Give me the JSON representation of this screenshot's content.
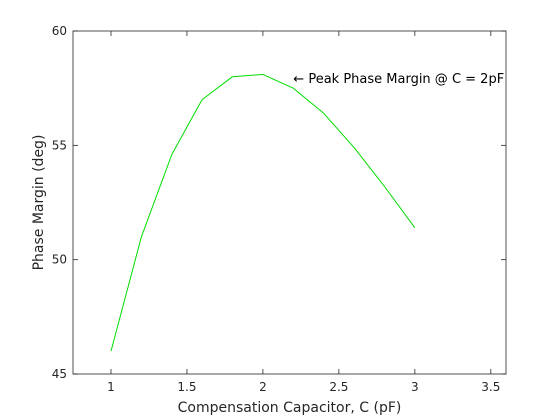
{
  "chart_data": {
    "type": "line",
    "title": "",
    "xlabel": "Compensation Capacitor, C (pF)",
    "ylabel": "Phase Margin (deg)",
    "xlim": [
      0.75,
      3.6
    ],
    "ylim": [
      45,
      60
    ],
    "xticks": [
      1,
      1.5,
      2,
      2.5,
      3,
      3.5
    ],
    "xtick_labels": [
      "1",
      "1.5",
      "2",
      "2.5",
      "3",
      "3.5"
    ],
    "yticks": [
      45,
      50,
      55,
      60
    ],
    "ytick_labels": [
      "45",
      "50",
      "55",
      "60"
    ],
    "grid": false,
    "legend": "none",
    "series": [
      {
        "color": "#00dd00",
        "x": [
          1.0,
          1.2,
          1.4,
          1.6,
          1.8,
          2.0,
          2.2,
          2.4,
          2.6,
          2.8,
          3.0
        ],
        "y": [
          46.0,
          51.0,
          54.6,
          57.0,
          58.0,
          58.1,
          57.5,
          56.4,
          54.9,
          53.2,
          51.4
        ]
      }
    ],
    "annotations": [
      {
        "text": "← Peak Phase Margin @ C = 2pF",
        "x": 2.2,
        "y": 57.9
      }
    ]
  }
}
